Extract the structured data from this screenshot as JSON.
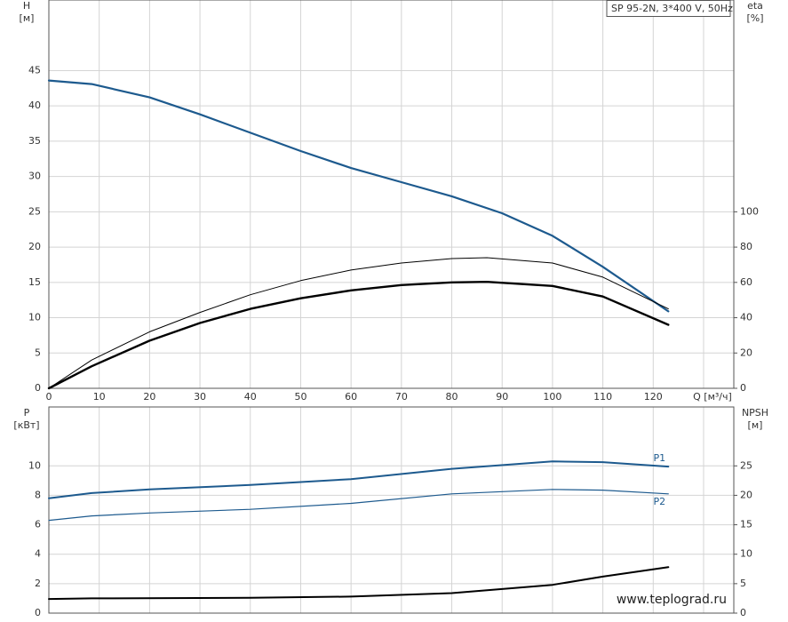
{
  "chart_data": [
    {
      "type": "line",
      "title": "SP 95-2N, 3*400 V, 50Hz",
      "y_label": "H",
      "y_unit": "[м]",
      "y2_label": "eta",
      "y2_unit": "[%]",
      "xlim": [
        0,
        136
      ],
      "xticks": [
        0,
        10,
        20,
        30,
        40,
        50,
        60,
        70,
        80,
        90,
        100,
        110,
        120,
        {
          "value": 130,
          "label": "Q [м³/ч]"
        }
      ],
      "ylim": [
        0,
        55
      ],
      "yticks": [
        0,
        5,
        10,
        15,
        20,
        25,
        30,
        35,
        40,
        45
      ],
      "y2lim": [
        0,
        220
      ],
      "y2ticks": [
        0,
        20,
        40,
        60,
        80,
        100
      ],
      "grid": true,
      "series": [
        {
          "color": "#1d5a8e",
          "width": 2.2,
          "x": [
            0,
            8.5,
            20,
            30,
            40,
            50,
            60,
            70,
            80,
            90,
            100,
            110,
            123
          ],
          "values": [
            43.6,
            43.1,
            41.2,
            38.8,
            36.2,
            33.6,
            31.2,
            29.2,
            27.2,
            24.8,
            21.6,
            17.2,
            10.9
          ]
        },
        {
          "color": "#000000",
          "width": 1,
          "axis": "y2",
          "x": [
            0,
            8.5,
            20,
            30,
            40,
            50,
            60,
            70,
            80,
            87,
            100,
            110,
            123
          ],
          "values": [
            0,
            16,
            32,
            43,
            53,
            61,
            67,
            71,
            73.5,
            74,
            71,
            63,
            45
          ]
        },
        {
          "color": "#000000",
          "width": 2.4,
          "axis": "y2",
          "x": [
            0,
            8.5,
            20,
            30,
            40,
            50,
            60,
            70,
            80,
            87,
            100,
            110,
            123
          ],
          "values": [
            0,
            12.5,
            27,
            37,
            45,
            51,
            55.5,
            58.5,
            60,
            60.3,
            58,
            52,
            36
          ]
        }
      ]
    },
    {
      "type": "line",
      "y_label": "P",
      "y_unit": "[кВт]",
      "y2_label": "NPSH",
      "y2_unit": "[м]",
      "xlim": [
        0,
        136
      ],
      "xticks": [
        0,
        10,
        20,
        30,
        40,
        50,
        60,
        70,
        80,
        90,
        100,
        110,
        120,
        130
      ],
      "ylim": [
        0,
        14
      ],
      "yticks": [
        0,
        2,
        4,
        6,
        8,
        10
      ],
      "y2lim": [
        0,
        35
      ],
      "y2ticks": [
        0,
        5,
        10,
        15,
        20,
        25
      ],
      "grid": true,
      "watermark": "www.teplograd.ru",
      "series": [
        {
          "name": "P1",
          "label_pos": "above",
          "color": "#1d5a8e",
          "width": 2,
          "x": [
            0,
            8.5,
            20,
            40,
            60,
            80,
            100,
            110,
            123
          ],
          "values": [
            7.8,
            8.15,
            8.4,
            8.7,
            9.1,
            9.8,
            10.3,
            10.25,
            9.95
          ]
        },
        {
          "name": "P2",
          "label_pos": "below",
          "color": "#1d5a8e",
          "width": 1.2,
          "x": [
            0,
            8.5,
            20,
            40,
            60,
            80,
            100,
            110,
            123
          ],
          "values": [
            6.3,
            6.6,
            6.8,
            7.05,
            7.45,
            8.1,
            8.4,
            8.35,
            8.1
          ]
        },
        {
          "color": "#000000",
          "width": 2,
          "axis": "y2",
          "x": [
            0,
            8.5,
            40,
            60,
            80,
            100,
            110,
            123
          ],
          "values": [
            2.4,
            2.5,
            2.6,
            2.8,
            3.4,
            4.8,
            6.2,
            7.8
          ]
        }
      ]
    }
  ]
}
